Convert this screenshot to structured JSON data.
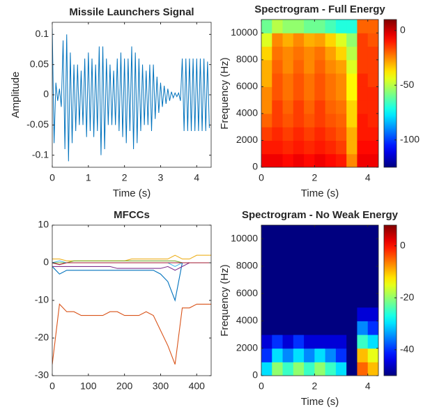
{
  "chart_data": [
    {
      "type": "line",
      "title": "Missile Launchers Signal",
      "x_label": "Time (s)",
      "y_label": "Amplitude",
      "xlim": [
        0,
        4.4
      ],
      "ylim": [
        -0.12,
        0.12
      ],
      "xticks": [
        0,
        1,
        2,
        3,
        4
      ],
      "yticks": [
        -0.1,
        -0.05,
        0,
        0.05,
        0.1
      ],
      "x": [
        0,
        0.05,
        0.1,
        0.15,
        0.2,
        0.25,
        0.3,
        0.35,
        0.4,
        0.45,
        0.5,
        0.55,
        0.6,
        0.65,
        0.7,
        0.75,
        0.8,
        0.85,
        0.9,
        0.95,
        1.0,
        1.05,
        1.1,
        1.15,
        1.2,
        1.25,
        1.3,
        1.35,
        1.4,
        1.45,
        1.5,
        1.55,
        1.6,
        1.65,
        1.7,
        1.75,
        1.8,
        1.85,
        1.9,
        1.95,
        2.0,
        2.05,
        2.1,
        2.15,
        2.2,
        2.25,
        2.3,
        2.35,
        2.4,
        2.45,
        2.5,
        2.55,
        2.6,
        2.65,
        2.7,
        2.75,
        2.8,
        2.85,
        2.9,
        2.95,
        3.0,
        3.05,
        3.1,
        3.15,
        3.2,
        3.25,
        3.3,
        3.35,
        3.4,
        3.45,
        3.5,
        3.55,
        3.6,
        3.65,
        3.7,
        3.75,
        3.8,
        3.85,
        3.9,
        3.95,
        4.0,
        4.05,
        4.1,
        4.15,
        4.2,
        4.25,
        4.3,
        4.35
      ],
      "series": [
        {
          "color": "#0072BD",
          "values": [
            0.11,
            -0.08,
            0.02,
            -0.01,
            0.01,
            -0.02,
            0.09,
            -0.09,
            0.1,
            -0.11,
            0.07,
            -0.08,
            0.05,
            -0.06,
            0.05,
            -0.05,
            0.04,
            -0.05,
            0.06,
            -0.07,
            0.07,
            -0.06,
            0.06,
            -0.07,
            0.05,
            -0.06,
            0.08,
            -0.1,
            0.08,
            -0.09,
            0.06,
            -0.05,
            0.05,
            -0.05,
            0.04,
            -0.05,
            0.06,
            -0.06,
            0.07,
            -0.07,
            0.06,
            -0.08,
            0.06,
            -0.06,
            0.08,
            -0.09,
            0.07,
            -0.08,
            0.06,
            -0.06,
            0.05,
            -0.05,
            0.04,
            -0.05,
            0.05,
            -0.06,
            0.05,
            -0.04,
            0.03,
            -0.03,
            0.02,
            -0.02,
            0.015,
            -0.015,
            0.01,
            -0.01,
            0.005,
            -0.005,
            0.003,
            -0.003,
            0.003,
            -0.01,
            0.06,
            -0.06,
            0.06,
            -0.06,
            0.06,
            -0.06,
            0.06,
            -0.06,
            0.06,
            -0.06,
            0.06,
            -0.06,
            0.06,
            -0.06,
            0.055,
            -0.055
          ]
        }
      ]
    },
    {
      "type": "heatmap",
      "title": "Spectrogram - Full Energy",
      "x_label": "Time (s)",
      "y_label": "Frequency (Hz)",
      "xlim": [
        0,
        4.4
      ],
      "ylim": [
        0,
        11000
      ],
      "xticks": [
        0,
        2,
        4
      ],
      "yticks": [
        0,
        2000,
        4000,
        6000,
        8000,
        10000
      ],
      "colormap": "jet",
      "clim": [
        -125,
        10
      ],
      "cticks": [
        -100,
        -50,
        0
      ],
      "xbins": [
        0,
        0.4,
        0.8,
        1.2,
        1.6,
        2.0,
        2.4,
        2.8,
        3.2,
        3.6,
        4.0,
        4.4
      ],
      "ybins": [
        0,
        1000,
        2000,
        3000,
        4000,
        5000,
        6000,
        7000,
        8000,
        9000,
        10000,
        11000
      ],
      "z": [
        [
          -5,
          -5,
          -8,
          -5,
          -8,
          -5,
          -8,
          -10,
          -25,
          -5,
          -5
        ],
        [
          -10,
          -10,
          -12,
          -10,
          -12,
          -10,
          -12,
          -15,
          -30,
          -8,
          -8
        ],
        [
          -15,
          -12,
          -15,
          -12,
          -15,
          -12,
          -15,
          -18,
          -30,
          -10,
          -10
        ],
        [
          -20,
          -15,
          -18,
          -15,
          -18,
          -15,
          -18,
          -20,
          -35,
          -10,
          -12
        ],
        [
          -25,
          -15,
          -20,
          -15,
          -20,
          -15,
          -20,
          -22,
          -35,
          -12,
          -12
        ],
        [
          -25,
          -18,
          -22,
          -18,
          -22,
          -18,
          -22,
          -25,
          -40,
          -12,
          -12
        ],
        [
          -30,
          -18,
          -22,
          -18,
          -22,
          -18,
          -22,
          -25,
          -40,
          -12,
          -15
        ],
        [
          -30,
          -20,
          -25,
          -20,
          -25,
          -20,
          -25,
          -28,
          -45,
          -15,
          -15
        ],
        [
          -35,
          -22,
          -25,
          -22,
          -25,
          -22,
          -28,
          -35,
          -50,
          -15,
          -15
        ],
        [
          -45,
          -25,
          -30,
          -25,
          -30,
          -28,
          -35,
          -45,
          -55,
          -15,
          -18
        ],
        [
          -60,
          -50,
          -55,
          -55,
          -60,
          -60,
          -65,
          -70,
          -70,
          -20,
          -20
        ]
      ]
    },
    {
      "type": "line",
      "title": "MFCCs",
      "xlim": [
        0,
        440
      ],
      "ylim": [
        -30,
        10
      ],
      "xticks": [
        0,
        100,
        200,
        300,
        400
      ],
      "yticks": [
        -30,
        -20,
        -10,
        0,
        10
      ],
      "x": [
        0,
        20,
        40,
        60,
        80,
        100,
        120,
        140,
        160,
        180,
        200,
        220,
        240,
        260,
        280,
        300,
        320,
        340,
        360,
        380,
        400,
        420,
        440
      ],
      "series": [
        {
          "color": "#0072BD",
          "values": [
            -1,
            -3,
            -2,
            -2,
            -2,
            -2,
            -2,
            -2,
            -2,
            -2,
            -2,
            -2,
            -2,
            -2,
            -2,
            -3,
            -5,
            -10,
            0,
            0,
            0,
            0,
            0
          ]
        },
        {
          "color": "#D95319",
          "values": [
            -27,
            -11,
            -13,
            -13,
            -14,
            -14,
            -14,
            -14,
            -13,
            -13,
            -14,
            -14,
            -14,
            -13,
            -14,
            -18,
            -22,
            -27,
            -12,
            -12,
            -11,
            -11,
            -11
          ]
        },
        {
          "color": "#EDB120",
          "values": [
            1,
            1,
            0.5,
            0.5,
            0.5,
            0.5,
            0.5,
            0.5,
            0.5,
            0.5,
            0.5,
            1,
            1,
            1,
            1,
            1,
            1,
            2,
            1,
            1,
            2,
            2,
            2
          ]
        },
        {
          "color": "#7E2F8E",
          "values": [
            -1,
            -1,
            -1,
            -1,
            -1,
            -1,
            -1,
            -1,
            -1,
            -1.5,
            -1.5,
            -1.5,
            -1.5,
            -1.5,
            -1.5,
            -1.5,
            -1,
            -2,
            -1,
            0,
            0,
            0,
            0
          ]
        },
        {
          "color": "#77AC30",
          "values": [
            0,
            0,
            0,
            0.5,
            0.5,
            0.5,
            0.5,
            0.5,
            0.5,
            0.5,
            0.5,
            0.5,
            0.5,
            0.5,
            0.5,
            0.5,
            0.5,
            0.5,
            0,
            0,
            0,
            0,
            0
          ]
        },
        {
          "color": "#4DBEEE",
          "values": [
            0,
            0.5,
            0,
            0,
            0,
            0,
            0,
            0,
            0,
            0,
            0,
            0,
            0,
            0,
            0,
            0,
            0,
            -1,
            0,
            0,
            0,
            0,
            0
          ]
        },
        {
          "color": "#A2142F",
          "values": [
            0,
            -0.5,
            0,
            0,
            0,
            0,
            0,
            0,
            0,
            0,
            0,
            0,
            0,
            0,
            0,
            0,
            0,
            0,
            0,
            0,
            0,
            0,
            0
          ]
        }
      ]
    },
    {
      "type": "heatmap",
      "title": "Spectrogram - No Weak Energy",
      "x_label": "Time (s)",
      "y_label": "Frequency (Hz)",
      "xlim": [
        0,
        4.4
      ],
      "ylim": [
        0,
        11000
      ],
      "xticks": [
        0,
        2,
        4
      ],
      "yticks": [
        0,
        2000,
        4000,
        6000,
        8000,
        10000
      ],
      "colormap": "jet",
      "clim": [
        -50,
        8
      ],
      "cticks": [
        -40,
        -20,
        0
      ],
      "xbins": [
        0,
        0.4,
        0.8,
        1.2,
        1.6,
        2.0,
        2.4,
        2.8,
        3.2,
        3.6,
        4.0,
        4.4
      ],
      "ybins": [
        0,
        1000,
        2000,
        3000,
        4000,
        5000,
        6000,
        7000,
        8000,
        9000,
        10000,
        11000
      ],
      "z": [
        [
          -30,
          -20,
          -25,
          -20,
          -25,
          -20,
          -25,
          -30,
          -50,
          -5,
          -10
        ],
        [
          -40,
          -30,
          -35,
          -30,
          -35,
          -30,
          -35,
          -40,
          -50,
          -10,
          -15
        ],
        [
          -45,
          -40,
          -45,
          -40,
          -45,
          -45,
          -45,
          -45,
          -50,
          -25,
          -30
        ],
        [
          -50,
          -50,
          -50,
          -50,
          -50,
          -50,
          -50,
          -50,
          -50,
          -35,
          -40
        ],
        [
          -50,
          -50,
          -50,
          -50,
          -50,
          -50,
          -50,
          -50,
          -50,
          -45,
          -45
        ],
        [
          -50,
          -50,
          -50,
          -50,
          -50,
          -50,
          -50,
          -50,
          -50,
          -50,
          -50
        ],
        [
          -50,
          -50,
          -50,
          -50,
          -50,
          -50,
          -50,
          -50,
          -50,
          -50,
          -50
        ],
        [
          -50,
          -50,
          -50,
          -50,
          -50,
          -50,
          -50,
          -50,
          -50,
          -50,
          -50
        ],
        [
          -50,
          -50,
          -50,
          -50,
          -50,
          -50,
          -50,
          -50,
          -50,
          -50,
          -50
        ],
        [
          -50,
          -50,
          -50,
          -50,
          -50,
          -50,
          -50,
          -50,
          -50,
          -50,
          -50
        ],
        [
          -50,
          -50,
          -50,
          -50,
          -50,
          -50,
          -50,
          -50,
          -50,
          -50,
          -50
        ]
      ]
    }
  ]
}
